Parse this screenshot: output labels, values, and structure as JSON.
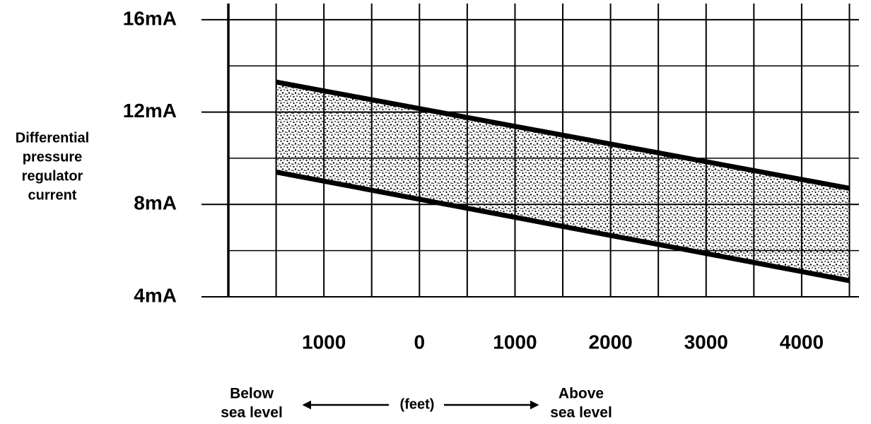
{
  "chart_data": {
    "type": "band",
    "y_label": [
      "Differential",
      "pressure",
      "regulator",
      "current"
    ],
    "x_unit": "(feet)",
    "left_note": [
      "Below",
      "sea level"
    ],
    "right_note": [
      "Above",
      "sea level"
    ],
    "series": [
      {
        "x": [
          -1500,
          4500
        ],
        "values": [
          13.3,
          8.7
        ],
        "color": "#000000"
      },
      {
        "x": [
          -1500,
          4500
        ],
        "values": [
          9.4,
          4.7
        ],
        "color": "#000000"
      }
    ],
    "xlim": [
      -2000,
      4600
    ],
    "xticks": [
      {
        "value": -1000,
        "label": "1000"
      },
      0,
      1000,
      2000,
      3000,
      4000
    ],
    "minor_xticks": [
      -1500,
      -500,
      500,
      1500,
      2500,
      3500,
      4500
    ],
    "ylim": [
      4,
      16.7
    ],
    "yticks": [
      {
        "value": 4,
        "label": "4mA"
      },
      {
        "value": 8,
        "label": "8mA"
      },
      {
        "value": 12,
        "label": "12mA"
      },
      {
        "value": 16,
        "label": "16mA"
      }
    ],
    "minor_yticks": [
      6,
      10,
      14
    ],
    "grid": true
  }
}
